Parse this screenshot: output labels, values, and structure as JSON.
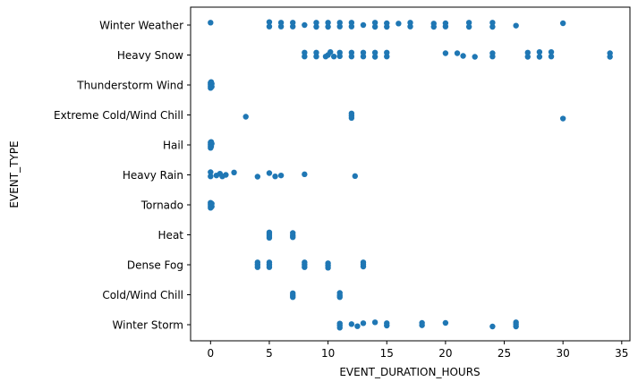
{
  "colors": {
    "marker": "#1f77b4",
    "axis": "#000000",
    "background": "#ffffff"
  },
  "chart_data": {
    "type": "scatter",
    "title": "",
    "xlabel": "EVENT_DURATION_HOURS",
    "ylabel": "EVENT_TYPE",
    "xlim": [
      -1.7,
      35.7
    ],
    "xticks": [
      0,
      5,
      10,
      15,
      20,
      25,
      30,
      35
    ],
    "grid": false,
    "legend": "none",
    "categories": [
      "Winter Weather",
      "Heavy Snow",
      "Thunderstorm Wind",
      "Extreme Cold/Wind Chill",
      "Hail",
      "Heavy Rain",
      "Tornado",
      "Heat",
      "Dense Fog",
      "Cold/Wind Chill",
      "Winter Storm"
    ],
    "series": [
      {
        "category": "Winter Weather",
        "points": [
          [
            0,
            -0.08
          ],
          [
            5,
            0.05
          ],
          [
            5,
            -0.1
          ],
          [
            6,
            0.05
          ],
          [
            6,
            -0.08
          ],
          [
            7,
            0.05
          ],
          [
            7,
            -0.08
          ],
          [
            8,
            0
          ],
          [
            9,
            0.06
          ],
          [
            9,
            -0.08
          ],
          [
            10,
            0.06
          ],
          [
            10,
            -0.08
          ],
          [
            11,
            0.05
          ],
          [
            11,
            -0.08
          ],
          [
            12,
            0.05
          ],
          [
            12,
            -0.08
          ],
          [
            13,
            0
          ],
          [
            14,
            0.06
          ],
          [
            14,
            -0.08
          ],
          [
            15,
            0.06
          ],
          [
            15,
            -0.06
          ],
          [
            16,
            -0.05
          ],
          [
            17,
            0.05
          ],
          [
            17,
            -0.08
          ],
          [
            19,
            0.06
          ],
          [
            19,
            -0.05
          ],
          [
            20,
            0.05
          ],
          [
            20,
            -0.06
          ],
          [
            22,
            0.06
          ],
          [
            22,
            -0.08
          ],
          [
            24,
            0.06
          ],
          [
            24,
            -0.08
          ],
          [
            26,
            0.02
          ],
          [
            30,
            -0.06
          ]
        ]
      },
      {
        "category": "Heavy Snow",
        "points": [
          [
            8,
            0.05
          ],
          [
            8,
            -0.08
          ],
          [
            9,
            0.05
          ],
          [
            9,
            -0.08
          ],
          [
            9.8,
            0.05
          ],
          [
            10,
            0.0
          ],
          [
            10.2,
            -0.1
          ],
          [
            10.5,
            0.05
          ],
          [
            11,
            -0.08
          ],
          [
            11,
            0.04
          ],
          [
            12,
            0.05
          ],
          [
            12,
            -0.08
          ],
          [
            13,
            0.05
          ],
          [
            13,
            -0.08
          ],
          [
            14,
            0.06
          ],
          [
            14,
            -0.08
          ],
          [
            15,
            0.05
          ],
          [
            15,
            -0.08
          ],
          [
            20,
            -0.06
          ],
          [
            21,
            -0.06
          ],
          [
            21.5,
            0.03
          ],
          [
            22.5,
            0.06
          ],
          [
            24,
            0.05
          ],
          [
            24,
            -0.06
          ],
          [
            27,
            0.06
          ],
          [
            27,
            -0.08
          ],
          [
            28,
            0.06
          ],
          [
            28,
            -0.1
          ],
          [
            29,
            0.05
          ],
          [
            29,
            -0.1
          ],
          [
            34,
            0.06
          ],
          [
            34,
            -0.06
          ]
        ]
      },
      {
        "category": "Thunderstorm Wind",
        "points": [
          [
            0,
            0.1
          ],
          [
            0,
            0.04
          ],
          [
            0,
            -0.02
          ],
          [
            0,
            -0.07
          ],
          [
            0.1,
            0.06
          ],
          [
            0.1,
            -0.04
          ],
          [
            0.05,
            -0.1
          ]
        ]
      },
      {
        "category": "Extreme Cold/Wind Chill",
        "points": [
          [
            3,
            0.06
          ],
          [
            12,
            0.1
          ],
          [
            12,
            0.03
          ],
          [
            12,
            -0.05
          ],
          [
            30,
            0.12
          ]
        ]
      },
      {
        "category": "Hail",
        "points": [
          [
            0,
            0.1
          ],
          [
            0,
            0.04
          ],
          [
            0,
            -0.02
          ],
          [
            0,
            -0.08
          ],
          [
            0.05,
            0.06
          ],
          [
            0.1,
            -0.04
          ],
          [
            0.05,
            -0.1
          ]
        ]
      },
      {
        "category": "Heavy Rain",
        "points": [
          [
            0,
            0.05
          ],
          [
            0,
            -0.09
          ],
          [
            0.5,
            0.02
          ],
          [
            0.8,
            -0.04
          ],
          [
            1,
            0.05
          ],
          [
            1.3,
            0
          ],
          [
            2,
            -0.08
          ],
          [
            4,
            0.06
          ],
          [
            5,
            -0.06
          ],
          [
            5.5,
            0.05
          ],
          [
            6,
            0.02
          ],
          [
            8,
            -0.02
          ],
          [
            12.3,
            0.04
          ]
        ]
      },
      {
        "category": "Tornado",
        "points": [
          [
            0,
            0.1
          ],
          [
            0,
            0.04
          ],
          [
            0,
            -0.02
          ],
          [
            0,
            -0.07
          ],
          [
            0.1,
            0.06
          ],
          [
            0.1,
            -0.04
          ]
        ]
      },
      {
        "category": "Heat",
        "points": [
          [
            5,
            0.1
          ],
          [
            5,
            0.04
          ],
          [
            5,
            -0.02
          ],
          [
            5,
            -0.08
          ],
          [
            7,
            0.08
          ],
          [
            7,
            0.02
          ],
          [
            7,
            -0.06
          ]
        ]
      },
      {
        "category": "Dense Fog",
        "points": [
          [
            4,
            0.08
          ],
          [
            4,
            0
          ],
          [
            4,
            -0.08
          ],
          [
            5,
            0.08
          ],
          [
            5,
            0
          ],
          [
            5,
            -0.08
          ],
          [
            8,
            0.08
          ],
          [
            8,
            0
          ],
          [
            8,
            -0.08
          ],
          [
            10,
            0.1
          ],
          [
            10,
            0.03
          ],
          [
            10,
            -0.05
          ],
          [
            13,
            0.06
          ],
          [
            13,
            -0.02
          ],
          [
            13,
            -0.08
          ]
        ]
      },
      {
        "category": "Cold/Wind Chill",
        "points": [
          [
            7,
            0.08
          ],
          [
            7,
            0.02
          ],
          [
            7,
            -0.05
          ],
          [
            11,
            0.08
          ],
          [
            11,
            0.02
          ],
          [
            11,
            -0.06
          ]
        ]
      },
      {
        "category": "Winter Storm",
        "points": [
          [
            11,
            0.1
          ],
          [
            11,
            0.03
          ],
          [
            11,
            -0.04
          ],
          [
            12,
            -0.02
          ],
          [
            12.5,
            0.05
          ],
          [
            13,
            -0.05
          ],
          [
            14,
            -0.08
          ],
          [
            15,
            0.03
          ],
          [
            15,
            -0.05
          ],
          [
            18,
            0.02
          ],
          [
            18,
            -0.06
          ],
          [
            20,
            -0.06
          ],
          [
            24,
            0.06
          ],
          [
            26,
            0.06
          ],
          [
            26,
            -0.02
          ],
          [
            26,
            -0.08
          ]
        ]
      }
    ]
  }
}
